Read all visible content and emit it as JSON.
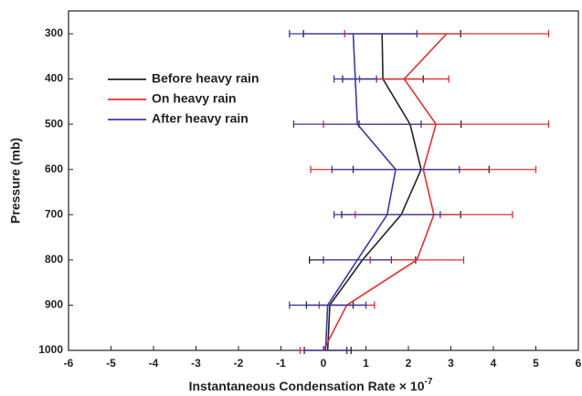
{
  "chart_data": {
    "type": "profile",
    "xlabel": "Instantaneous Condensation Rate × 10",
    "xlabel_exponent": "-7",
    "ylabel": "Pressure (mb)",
    "y": [
      300,
      400,
      500,
      600,
      700,
      800,
      900,
      1000
    ],
    "xlim": [
      -6,
      6
    ],
    "xticks": [
      -6,
      -5,
      -4,
      -3,
      -2,
      -1,
      0,
      1,
      2,
      3,
      4,
      5,
      6
    ],
    "ylim": [
      1000,
      300
    ],
    "yticks": [
      300,
      400,
      500,
      600,
      700,
      800,
      900,
      1000
    ],
    "legend": "upper-left",
    "series": [
      {
        "name": "Before heavy rain",
        "color": "#222222",
        "values": [
          1.38,
          1.4,
          2.04,
          2.3,
          1.83,
          0.92,
          0.15,
          0.1
        ],
        "errors": [
          1.85,
          0.95,
          1.2,
          1.6,
          1.4,
          1.25,
          0.55,
          0.55
        ]
      },
      {
        "name": "On heavy rain",
        "color": "#e03030",
        "values": [
          2.9,
          1.9,
          2.65,
          2.35,
          2.6,
          2.2,
          0.55,
          0.0
        ],
        "errors": [
          2.4,
          1.05,
          2.65,
          2.65,
          1.85,
          1.1,
          0.65,
          0.55
        ]
      },
      {
        "name": "After heavy rain",
        "color": "#3a3aa0",
        "values": [
          0.7,
          0.75,
          0.8,
          1.7,
          1.5,
          0.8,
          0.1,
          0.05
        ],
        "errors": [
          1.5,
          0.5,
          1.5,
          1.5,
          1.25,
          0.8,
          0.9,
          0.5
        ]
      }
    ]
  }
}
